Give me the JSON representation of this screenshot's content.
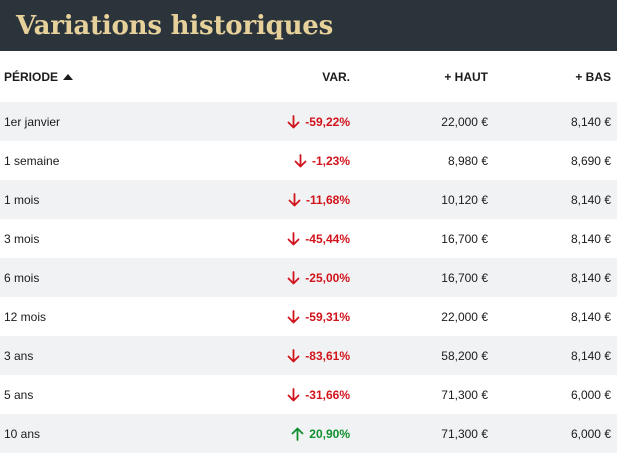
{
  "header": {
    "title": "Variations historiques"
  },
  "table": {
    "columns": {
      "period": "PÉRIODE",
      "var": "VAR.",
      "high": "+ HAUT",
      "low": "+ BAS"
    },
    "sort_icon": "sort-ascending-icon",
    "colors": {
      "down": "#d1131b",
      "up": "#0f8f2e",
      "header_bg": "#2b333b",
      "title": "#e6d19b",
      "stripe": "#f1f2f4"
    },
    "rows": [
      {
        "period": "1er janvier",
        "var": "-59,22%",
        "direction": "down",
        "high": "22,000 €",
        "low": "8,140 €"
      },
      {
        "period": "1 semaine",
        "var": "-1,23%",
        "direction": "down",
        "high": "8,980 €",
        "low": "8,690 €"
      },
      {
        "period": "1 mois",
        "var": "-11,68%",
        "direction": "down",
        "high": "10,120 €",
        "low": "8,140 €"
      },
      {
        "period": "3 mois",
        "var": "-45,44%",
        "direction": "down",
        "high": "16,700 €",
        "low": "8,140 €"
      },
      {
        "period": "6 mois",
        "var": "-25,00%",
        "direction": "down",
        "high": "16,700 €",
        "low": "8,140 €"
      },
      {
        "period": "12 mois",
        "var": "-59,31%",
        "direction": "down",
        "high": "22,000 €",
        "low": "8,140 €"
      },
      {
        "period": "3 ans",
        "var": "-83,61%",
        "direction": "down",
        "high": "58,200 €",
        "low": "8,140 €"
      },
      {
        "period": "5 ans",
        "var": "-31,66%",
        "direction": "down",
        "high": "71,300 €",
        "low": "6,000 €"
      },
      {
        "period": "10 ans",
        "var": "20,90%",
        "direction": "up",
        "high": "71,300 €",
        "low": "6,000 €"
      }
    ]
  }
}
